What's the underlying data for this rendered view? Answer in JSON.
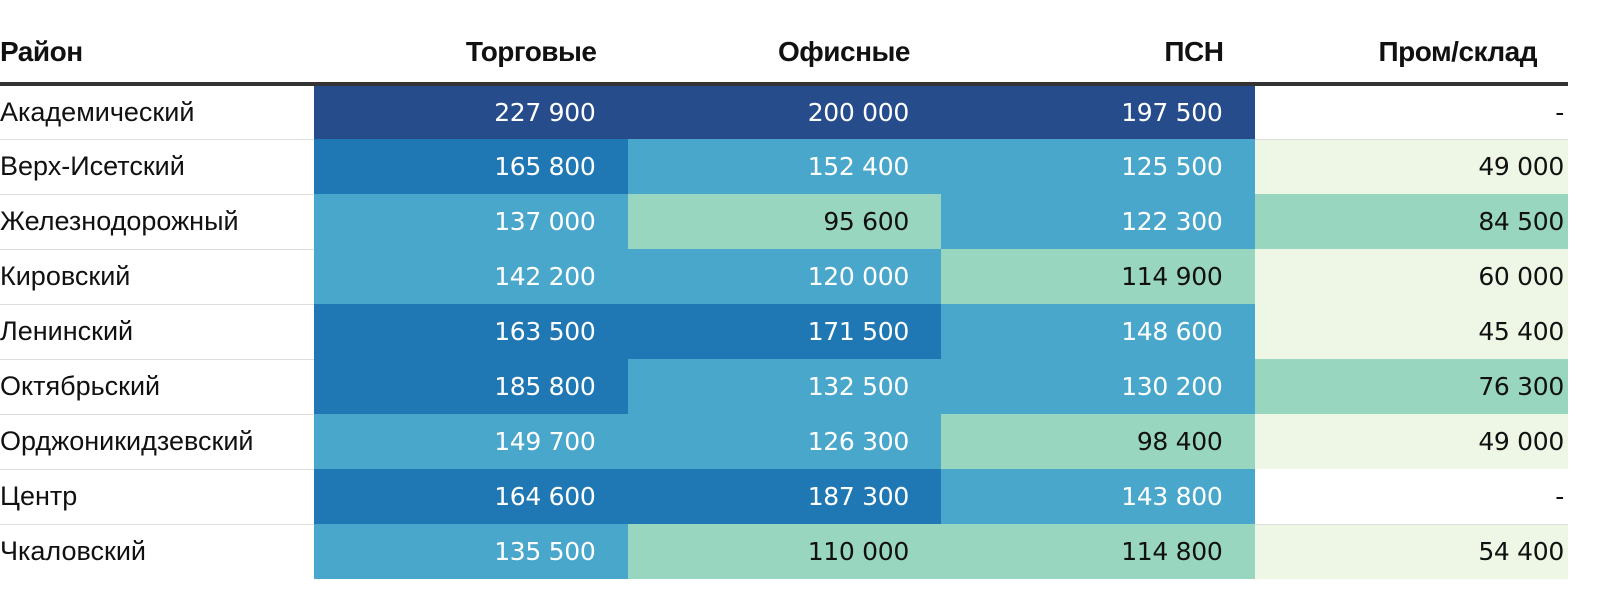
{
  "chart_data": {
    "type": "heatmap",
    "title": "",
    "columns": [
      "Район",
      "Торговые",
      "Офисные",
      "ПСН",
      "Пром/склад"
    ],
    "rows": [
      {
        "name": "Академический",
        "values": [
          "227 900",
          "200 000",
          "197 500",
          "-"
        ],
        "nums": [
          227900,
          200000,
          197500,
          null
        ]
      },
      {
        "name": "Верх-Исетский",
        "values": [
          "165 800",
          "152 400",
          "125 500",
          "49 000"
        ],
        "nums": [
          165800,
          152400,
          125500,
          49000
        ]
      },
      {
        "name": "Железнодорожный",
        "values": [
          "137 000",
          "95 600",
          "122 300",
          "84 500"
        ],
        "nums": [
          137000,
          95600,
          122300,
          84500
        ]
      },
      {
        "name": "Кировский",
        "values": [
          "142 200",
          "120 000",
          "114 900",
          "60 000"
        ],
        "nums": [
          142200,
          120000,
          114900,
          60000
        ]
      },
      {
        "name": "Ленинский",
        "values": [
          "163 500",
          "171 500",
          "148 600",
          "45 400"
        ],
        "nums": [
          163500,
          171500,
          148600,
          45400
        ]
      },
      {
        "name": "Октябрьский",
        "values": [
          "185 800",
          "132 500",
          "130 200",
          "76 300"
        ],
        "nums": [
          185800,
          132500,
          130200,
          76300
        ]
      },
      {
        "name": "Орджоникидзевский",
        "values": [
          "149 700",
          "126 300",
          "98 400",
          "49 000"
        ],
        "nums": [
          149700,
          126300,
          98400,
          49000
        ]
      },
      {
        "name": "Центр",
        "values": [
          "164 600",
          "187 300",
          "143 800",
          "-"
        ],
        "nums": [
          164600,
          187300,
          143800,
          null
        ]
      },
      {
        "name": "Чкаловский",
        "values": [
          "135 500",
          "110 000",
          "114 800",
          "54 400"
        ],
        "nums": [
          135500,
          110000,
          114800,
          54400
        ]
      }
    ],
    "color_scale": {
      "thresholds": [
        75000,
        120000,
        160000,
        190000
      ],
      "colors": [
        "#eef7e5",
        "#99d6c0",
        "#4aa7cc",
        "#1f78b4",
        "#264c8c"
      ],
      "text_colors": [
        "#111111",
        "#111111",
        "#ffffff",
        "#ffffff",
        "#ffffff"
      ],
      "missing_color": "#ffffff",
      "missing_text_color": "#111111"
    }
  }
}
